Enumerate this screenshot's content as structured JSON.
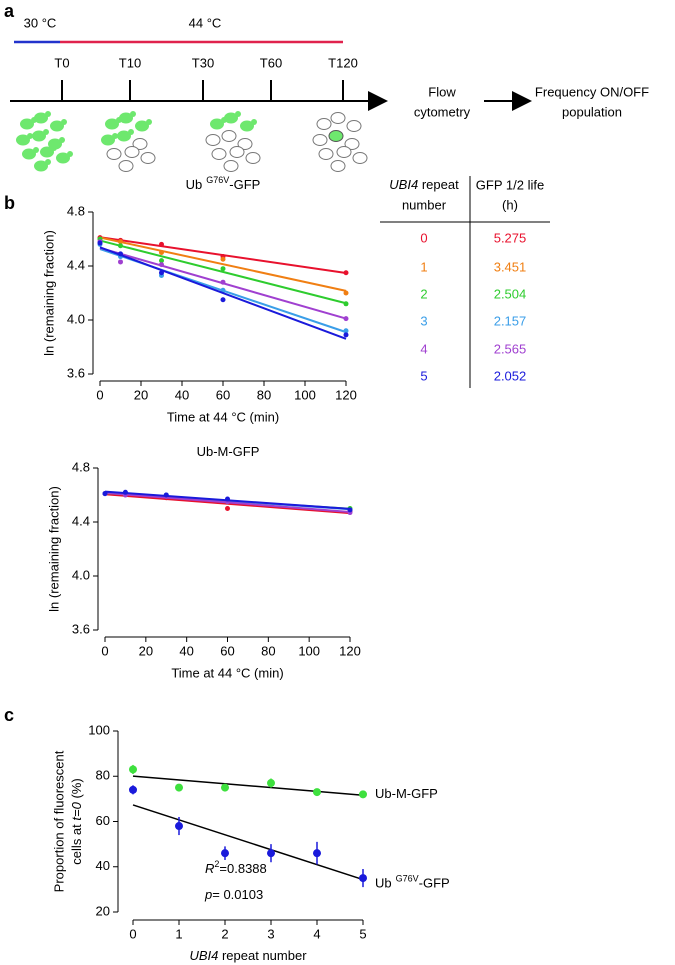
{
  "panel_letters": [
    "a",
    "b",
    "c"
  ],
  "panel_a": {
    "temperatures": [
      "30 °C",
      "44 °C"
    ],
    "timepoints": [
      "T0",
      "T10",
      "T30",
      "T60",
      "T120"
    ],
    "steps": [
      [
        "Flow",
        "cytometry"
      ],
      [
        "Frequency ON/OFF",
        "population"
      ]
    ]
  },
  "half_life_table": {
    "header": [
      [
        "UBI4",
        " repeat",
        "number"
      ],
      [
        "GFP 1/2 life",
        "(h)"
      ]
    ],
    "rows": [
      [
        0,
        5.275
      ],
      [
        1,
        3.451
      ],
      [
        2,
        2.504
      ],
      [
        3,
        2.157
      ],
      [
        4,
        2.565
      ],
      [
        5,
        2.052
      ]
    ]
  },
  "chart_data": [
    {
      "type": "scatter",
      "title": "Ub",
      "title_superscript": "G76V",
      "title_suffix": "-GFP",
      "xlabel": "Time at 44 °C (min)",
      "ylabel": "ln (remaining fraction)",
      "x": [
        0,
        10,
        30,
        60,
        120
      ],
      "series": [
        {
          "color": "#e8112d",
          "values": [
            4.61,
            4.59,
            4.56,
            4.47,
            4.35
          ]
        },
        {
          "color": "#f07f13",
          "values": [
            4.6,
            4.58,
            4.5,
            4.45,
            4.2
          ]
        },
        {
          "color": "#2ecc2e",
          "values": [
            4.6,
            4.55,
            4.44,
            4.38,
            4.12
          ]
        },
        {
          "color": "#3a9ee8",
          "values": [
            4.56,
            4.47,
            4.33,
            4.22,
            3.92
          ]
        },
        {
          "color": "#a040d0",
          "values": [
            4.58,
            4.43,
            4.41,
            4.28,
            4.01
          ]
        },
        {
          "color": "#1a1adb",
          "values": [
            4.57,
            4.49,
            4.35,
            4.15,
            3.89
          ]
        }
      ],
      "xlim": [
        0,
        120
      ],
      "xticks": [
        0,
        20,
        40,
        60,
        80,
        100,
        120
      ],
      "ylim": [
        3.6,
        4.8
      ],
      "yticks": [
        3.6,
        {
          "value": 4,
          "label": "4.0"
        },
        4.4,
        4.8
      ]
    },
    {
      "type": "scatter",
      "title": "Ub-M-GFP",
      "xlabel": "Time at 44 °C (min)",
      "ylabel": "ln (remaining fraction)",
      "x": [
        0,
        10,
        30,
        60,
        120
      ],
      "series": [
        {
          "color": "#e8112d",
          "values": [
            4.61,
            4.6,
            4.58,
            4.5,
            4.48
          ]
        },
        {
          "color": "#2ecc2e",
          "values": [
            4.61,
            4.61,
            4.59,
            4.55,
            4.5
          ]
        },
        {
          "color": "#3a9ee8",
          "values": [
            4.61,
            4.61,
            4.6,
            4.56,
            4.49
          ]
        },
        {
          "color": "#a040d0",
          "values": [
            4.61,
            4.6,
            4.59,
            4.55,
            4.47
          ]
        },
        {
          "color": "#1a1adb",
          "values": [
            4.61,
            4.62,
            4.6,
            4.57,
            4.49
          ]
        }
      ],
      "xlim": [
        0,
        120
      ],
      "xticks": [
        0,
        20,
        40,
        60,
        80,
        100,
        120
      ],
      "ylim": [
        3.6,
        4.8
      ],
      "yticks": [
        3.6,
        {
          "value": 4,
          "label": "4.0"
        },
        4.4,
        4.8
      ]
    },
    {
      "type": "scatter",
      "xlabel": {
        "italic": "UBI4",
        "rest": " repeat number"
      },
      "ylabel": {
        "line1": "Proportion of fluorescent",
        "line2_start": "cells at ",
        "line2_italic": "t=0",
        "line2_end": "  (%)"
      },
      "x": [
        0,
        1,
        2,
        3,
        4,
        5
      ],
      "series": [
        {
          "name": "Ub-M-GFP",
          "color": "#3ee03e",
          "values": [
            83,
            75,
            75,
            77,
            73,
            72
          ],
          "errors": [
            2,
            1.5,
            1,
            2,
            1,
            1.5
          ]
        },
        {
          "name": "Ub",
          "name_superscript": "G76V",
          "name_suffix": "-GFP",
          "color": "#1a1adb",
          "values": [
            74,
            58,
            46,
            46,
            46,
            35
          ],
          "errors": [
            2,
            4,
            3,
            4,
            5,
            4
          ]
        }
      ],
      "annotations": [
        {
          "italic": "R",
          "sup": "2",
          "rest": "=0.8388"
        },
        {
          "italic": "p",
          "rest": "= 0.0103"
        }
      ],
      "xlim": [
        0,
        5
      ],
      "xticks": [
        0,
        1,
        2,
        3,
        4,
        5
      ],
      "ylim": [
        20,
        100
      ],
      "yticks": [
        20,
        40,
        60,
        80,
        100
      ]
    }
  ]
}
